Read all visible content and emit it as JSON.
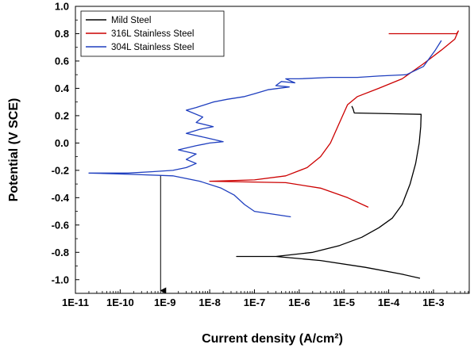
{
  "chart_data": {
    "type": "line",
    "title": "",
    "xlabel": "Current density (A/cm²)",
    "ylabel": "Potential (V SCE)",
    "x_scale": "log",
    "xlim": [
      1e-11,
      0.0063
    ],
    "ylim": [
      -1.1,
      1.0
    ],
    "x_ticks": [
      1e-11,
      1e-10,
      1e-09,
      1e-08,
      1e-07,
      1e-06,
      1e-05,
      0.0001,
      0.001
    ],
    "x_tick_labels": [
      "1E-11",
      "1E-10",
      "1E-9",
      "1E-8",
      "1E-7",
      "1E-6",
      "1E-5",
      "1E-4",
      "1E-3"
    ],
    "y_ticks": [
      -1.0,
      -0.8,
      -0.6,
      -0.4,
      -0.2,
      0.0,
      0.2,
      0.4,
      0.6,
      0.8,
      1.0
    ],
    "y_tick_labels": [
      "-1.0",
      "-0.8",
      "-0.6",
      "-0.4",
      "-0.2",
      "0.0",
      "0.2",
      "0.4",
      "0.6",
      "0.8",
      "1.0"
    ],
    "grid": false,
    "legend_position": "top-left",
    "series": [
      {
        "name": "Mild Steel",
        "color": "#000000",
        "points": [
          [
            1.5e-05,
            0.27
          ],
          [
            1.6e-05,
            0.25
          ],
          [
            1.7e-05,
            0.22
          ],
          [
            0.00053,
            0.21
          ],
          [
            0.00052,
            0.12
          ],
          [
            0.00048,
            0.0
          ],
          [
            0.0004,
            -0.15
          ],
          [
            0.0003,
            -0.3
          ],
          [
            0.0002,
            -0.45
          ],
          [
            0.00012,
            -0.55
          ],
          [
            6e-05,
            -0.62
          ],
          [
            2.5e-05,
            -0.69
          ],
          [
            8e-06,
            -0.75
          ],
          [
            2e-06,
            -0.8
          ],
          [
            3e-07,
            -0.83
          ],
          [
            4e-08,
            -0.83
          ],
          [
            3e-07,
            -0.83
          ],
          [
            3e-06,
            -0.86
          ],
          [
            3e-05,
            -0.91
          ],
          [
            0.0002,
            -0.96
          ],
          [
            0.0005,
            -0.99
          ]
        ]
      },
      {
        "name": "316L Stainless Steel",
        "color": "#cc0000",
        "points": [
          [
            0.0001,
            0.8
          ],
          [
            0.0033,
            0.8
          ],
          [
            0.0036,
            0.82
          ],
          [
            0.003,
            0.76
          ],
          [
            0.0015,
            0.68
          ],
          [
            0.0006,
            0.58
          ],
          [
            0.0002,
            0.47
          ],
          [
            6e-05,
            0.4
          ],
          [
            2e-05,
            0.34
          ],
          [
            1.2e-05,
            0.28
          ],
          [
            8e-06,
            0.15
          ],
          [
            5e-06,
            0.0
          ],
          [
            3e-06,
            -0.1
          ],
          [
            1.5e-06,
            -0.18
          ],
          [
            5e-07,
            -0.24
          ],
          [
            1e-07,
            -0.27
          ],
          [
            1e-08,
            -0.28
          ],
          [
            5e-07,
            -0.29
          ],
          [
            3e-06,
            -0.33
          ],
          [
            1.2e-05,
            -0.4
          ],
          [
            3.5e-05,
            -0.47
          ]
        ]
      },
      {
        "name": "304L Stainless Steel",
        "color": "#1f3fbf",
        "points": [
          [
            0.0015,
            0.75
          ],
          [
            0.0011,
            0.68
          ],
          [
            0.0006,
            0.56
          ],
          [
            0.00025,
            0.5
          ],
          [
            6e-05,
            0.49
          ],
          [
            2e-05,
            0.48
          ],
          [
            5e-06,
            0.48
          ],
          [
            1e-06,
            0.47
          ],
          [
            5e-07,
            0.47
          ],
          [
            8e-07,
            0.44
          ],
          [
            4e-07,
            0.45
          ],
          [
            3e-07,
            0.42
          ],
          [
            6e-07,
            0.41
          ],
          [
            2e-07,
            0.39
          ],
          [
            1e-07,
            0.36
          ],
          [
            6e-08,
            0.34
          ],
          [
            2.5e-08,
            0.32
          ],
          [
            1.2e-08,
            0.3
          ],
          [
            5e-09,
            0.26
          ],
          [
            3e-09,
            0.24
          ],
          [
            7e-09,
            0.19
          ],
          [
            5e-09,
            0.15
          ],
          [
            1.2e-08,
            0.12
          ],
          [
            6e-09,
            0.1
          ],
          [
            3e-09,
            0.07
          ],
          [
            8e-09,
            0.04
          ],
          [
            2e-08,
            0.01
          ],
          [
            1e-08,
            0.0
          ],
          [
            5e-09,
            -0.02
          ],
          [
            2e-09,
            -0.05
          ],
          [
            5e-09,
            -0.08
          ],
          [
            3e-09,
            -0.12
          ],
          [
            5e-09,
            -0.15
          ],
          [
            3e-09,
            -0.18
          ],
          [
            1.5e-09,
            -0.2
          ],
          [
            5e-10,
            -0.21
          ],
          [
            1.5e-10,
            -0.22
          ],
          [
            2e-11,
            -0.22
          ],
          [
            2e-10,
            -0.23
          ],
          [
            1.5e-09,
            -0.24
          ],
          [
            6e-09,
            -0.28
          ],
          [
            1.8e-08,
            -0.33
          ],
          [
            3.5e-08,
            -0.38
          ],
          [
            6e-08,
            -0.45
          ],
          [
            1e-07,
            -0.5
          ],
          [
            6.5e-07,
            -0.54
          ]
        ]
      }
    ],
    "annotations": [
      {
        "type": "arrow",
        "x": 8e-10,
        "y_from": -0.24,
        "y_to": -1.08
      }
    ]
  }
}
